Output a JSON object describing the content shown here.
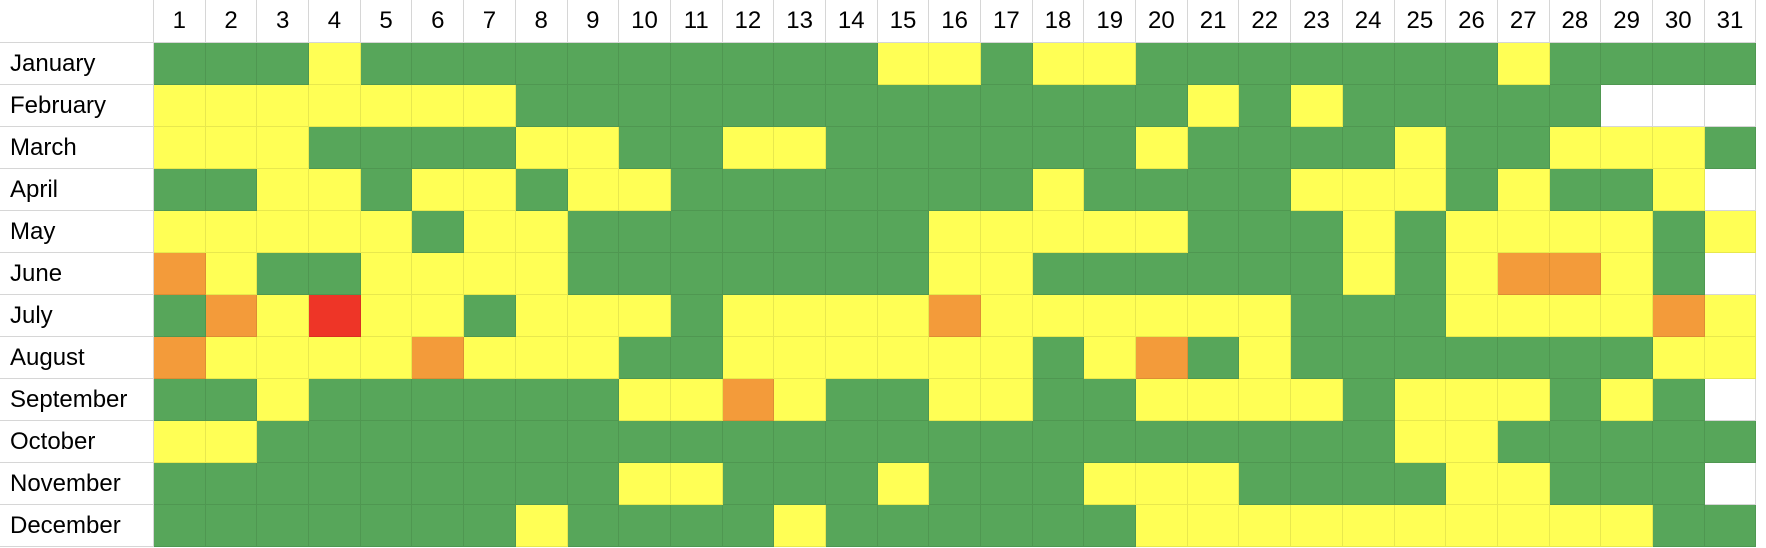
{
  "colors": {
    "G": "#57a65a",
    "Y": "#ffff55",
    "O": "#f39b3a",
    "R": "#ee3527",
    "W": "#ffffff"
  },
  "days": [
    "1",
    "2",
    "3",
    "4",
    "5",
    "6",
    "7",
    "8",
    "9",
    "10",
    "11",
    "12",
    "13",
    "14",
    "15",
    "16",
    "17",
    "18",
    "19",
    "20",
    "21",
    "22",
    "23",
    "24",
    "25",
    "26",
    "27",
    "28",
    "29",
    "30",
    "31"
  ],
  "months": [
    {
      "name": "January",
      "cells": "GGGYGGGGGGGGGGYYGYYGGGGGGGYGGGG"
    },
    {
      "name": "February",
      "cells": "YYYYYYYGGGGGGGGGGGGGYGYGGGGGWWW"
    },
    {
      "name": "March",
      "cells": "YYYGGGGYYGGYYGGGGGGYGGGGYGGYYYG"
    },
    {
      "name": "April",
      "cells": "GGYYGYYGYYGGGGGGGYGGGGYYYGYGGYW"
    },
    {
      "name": "May",
      "cells": "YYYYYGYYGGGGGGGYYYYYGGGYGYYYYGY"
    },
    {
      "name": "June",
      "cells": "OYGGYYYYGGGGGGGYYGGGGGGYGYOOYGW"
    },
    {
      "name": "July",
      "cells": "GOYRYYGYYYGYYYYOYYYYYYGGGYYYYOY"
    },
    {
      "name": "August",
      "cells": "OYYYYOYYYGGYYYYYYGYOGYGGGGGGGYY"
    },
    {
      "name": "September",
      "cells": "GGYGGGGGGYYOYGGYYGGYYYYGYYYGYGW"
    },
    {
      "name": "October",
      "cells": "YYGGGGGGGGGGGGGGGGGGGGGGYYGGGGG"
    },
    {
      "name": "November",
      "cells": "GGGGGGGGGYYGGGYGGGYYYGGGGYYGGGW"
    },
    {
      "name": "December",
      "cells": "GGGGGGGYGGGGYGGGGGGYYYYYYYYYYGG"
    }
  ]
}
